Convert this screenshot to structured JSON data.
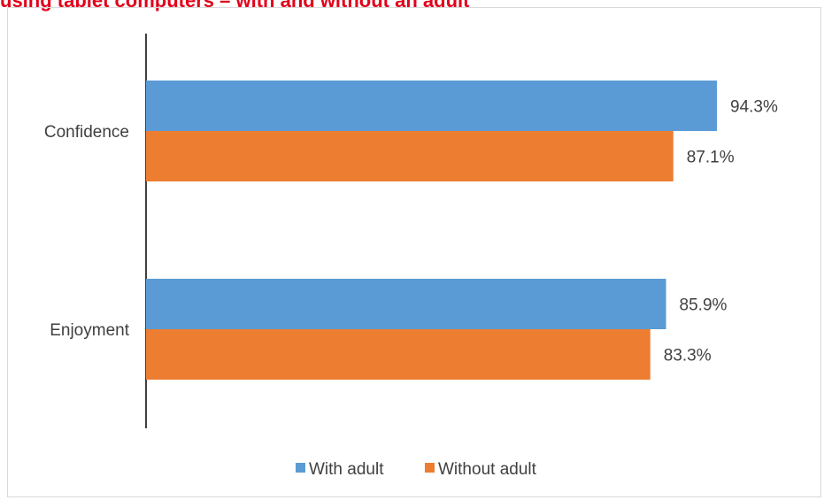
{
  "header": {
    "title_fragment": "using tablet computers – with and without an adult"
  },
  "chart_data": {
    "type": "bar",
    "orientation": "horizontal",
    "categories": [
      "Confidence",
      "Enjoyment"
    ],
    "series": [
      {
        "name": "With adult",
        "values": [
          94.3,
          85.9
        ],
        "color": "#5b9bd5"
      },
      {
        "name": "Without adult",
        "values": [
          87.1,
          83.3
        ],
        "color": "#ed7d31"
      }
    ],
    "data_labels": [
      [
        "94.3%",
        "87.1%"
      ],
      [
        "85.9%",
        "83.3%"
      ]
    ],
    "xlim": [
      0,
      100
    ],
    "grid": false,
    "legend_position": "bottom"
  }
}
